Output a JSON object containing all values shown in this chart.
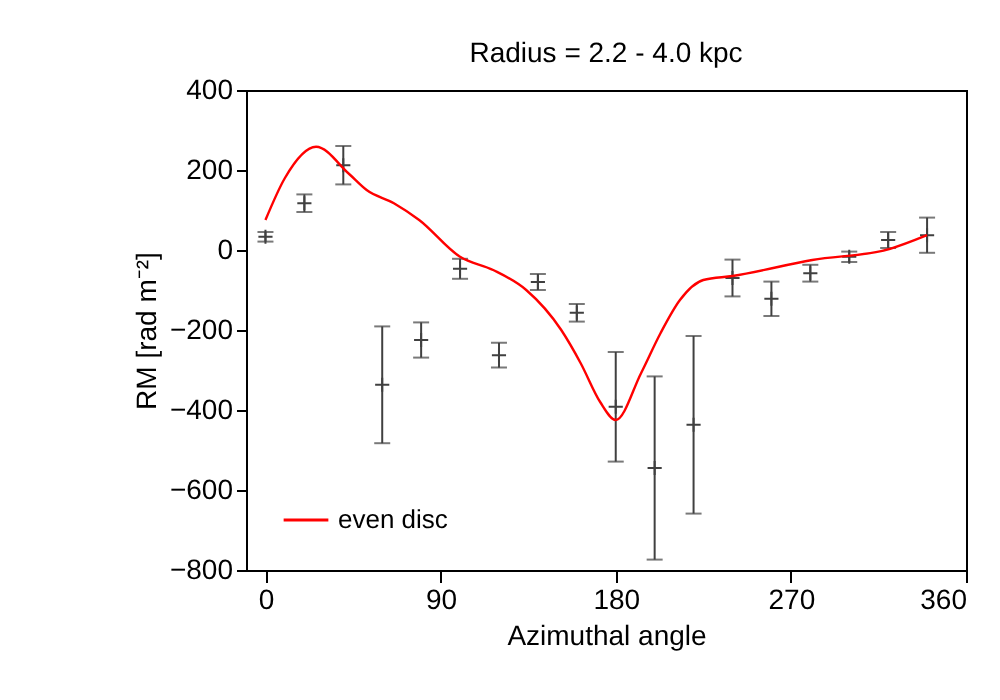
{
  "chart_data": {
    "type": "scatter",
    "title": "Radius = 2.2 - 4.0 kpc",
    "xlabel": "Azimuthal angle",
    "ylabel": "RM [rad m⁻²]",
    "xlim": [
      -10,
      360
    ],
    "xticks": [
      0,
      90,
      180,
      270,
      360
    ],
    "ylim": [
      -800,
      400
    ],
    "yticks": [
      -800,
      -600,
      -400,
      -200,
      0,
      200,
      400
    ],
    "grid": false,
    "legend": "bottom left",
    "series": [
      {
        "color": "#404040",
        "marker": "cross",
        "x": [
          0,
          20,
          40,
          60,
          80,
          100,
          120,
          140,
          160,
          180,
          200,
          220,
          240,
          260,
          280,
          300,
          320,
          340
        ],
        "values": [
          33,
          117,
          212,
          -337,
          -225,
          -47,
          -263,
          -80,
          -157,
          -392,
          -545,
          -437,
          -70,
          -122,
          -58,
          -17,
          25,
          37
        ],
        "errors": [
          12,
          22,
          48,
          146,
          44,
          25,
          31,
          20,
          22,
          137,
          229,
          222,
          46,
          43,
          21,
          13,
          20,
          44
        ]
      },
      {
        "type": "line",
        "name": "even disc",
        "color": "#ff0000",
        "line_style": "solid",
        "x": [
          0,
          10,
          26,
          43,
          52,
          66,
          79,
          100,
          117,
          134,
          152,
          162,
          172,
          180,
          193,
          203,
          213,
          225,
          240,
          281,
          321,
          340
        ],
        "values": [
          75,
          180,
          258,
          190,
          150,
          117,
          75,
          -17,
          -50,
          -100,
          -200,
          -283,
          -380,
          -425,
          -308,
          -208,
          -125,
          -75,
          -65,
          -25,
          3,
          37
        ]
      }
    ]
  }
}
